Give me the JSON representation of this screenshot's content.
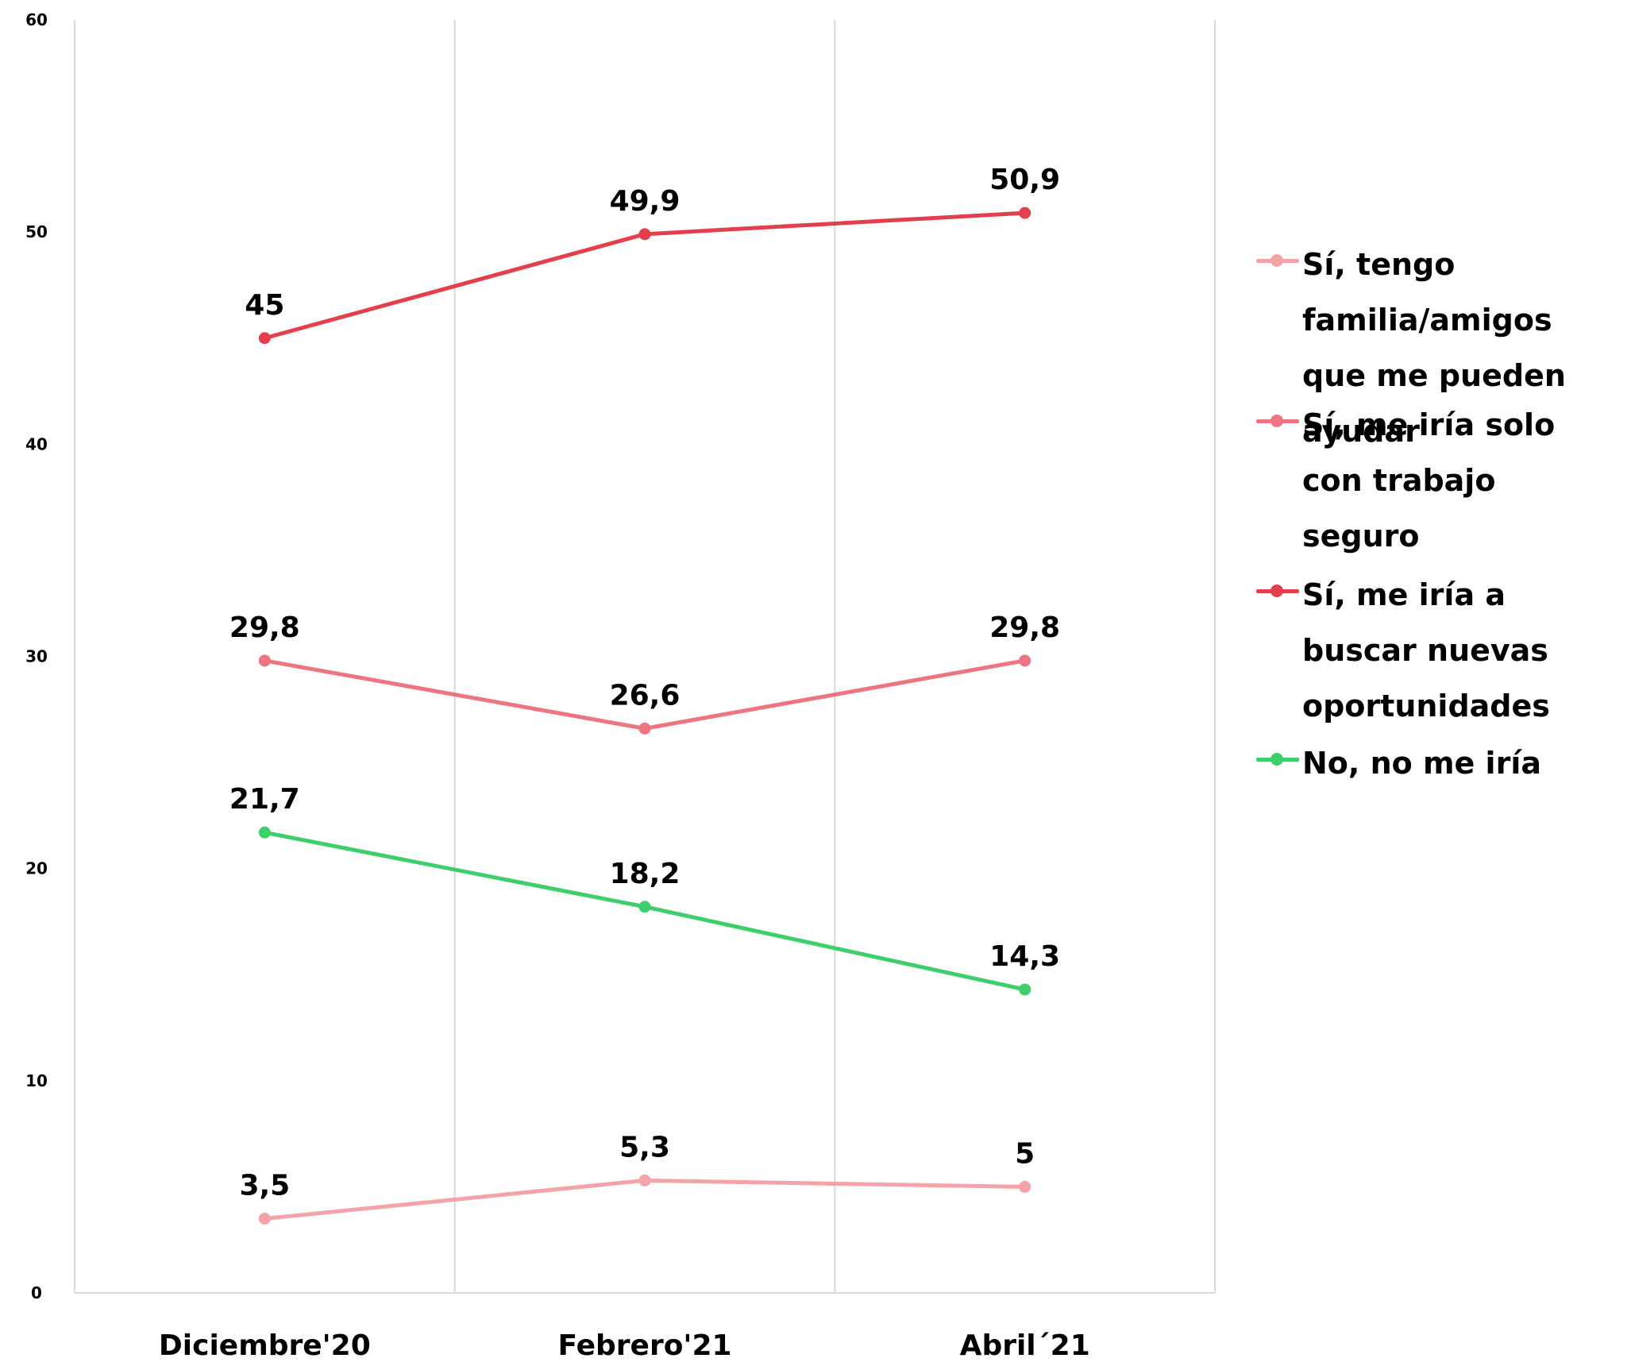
{
  "chart_data": {
    "type": "line",
    "categories": [
      "Diciembre'20",
      "Febrero'21",
      "Abril´21"
    ],
    "ylim": [
      0,
      60
    ],
    "yticks": [
      "0",
      "10",
      "20",
      "30",
      "40",
      "50",
      "60"
    ],
    "grid": "vertical",
    "legend_position": "right",
    "series": [
      {
        "name": "Sí, tengo familia/amigos que me pueden ayudar",
        "color": "#f4a3a8",
        "values": [
          3.5,
          5.3,
          5
        ],
        "labels": [
          "3,5",
          "5,3",
          "5"
        ]
      },
      {
        "name": "Sí, me iría solo con trabajo seguro",
        "color": "#ed7480",
        "values": [
          29.8,
          26.6,
          29.8
        ],
        "labels": [
          "29,8",
          "26,6",
          "29,8"
        ]
      },
      {
        "name": "Sí, me iría a buscar nuevas oportunidades",
        "color": "#e43f4d",
        "values": [
          45,
          49.9,
          50.9
        ],
        "labels": [
          "45",
          "49,9",
          "50,9"
        ]
      },
      {
        "name": "No, no me iría",
        "color": "#3ecf6b",
        "values": [
          21.7,
          18.2,
          14.3
        ],
        "labels": [
          "21,7",
          "18,2",
          "14,3"
        ]
      }
    ]
  }
}
